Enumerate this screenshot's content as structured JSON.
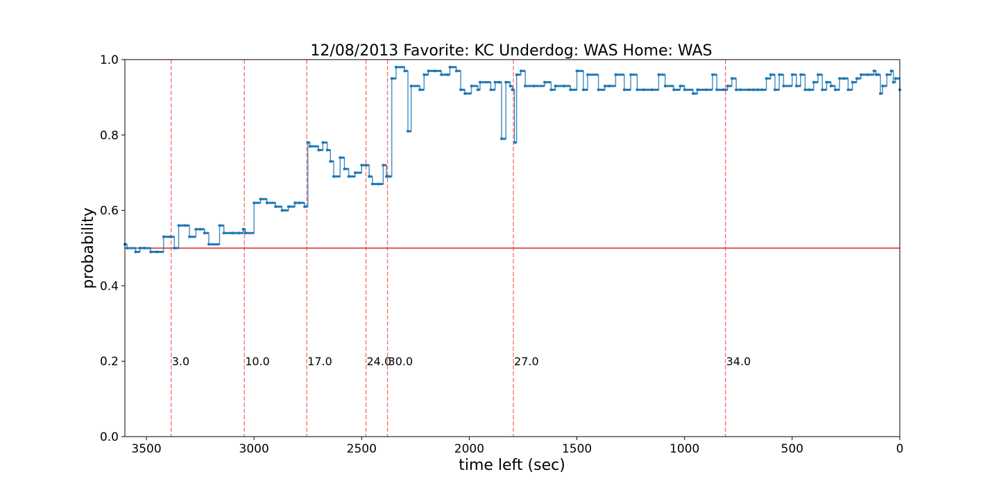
{
  "chart_data": {
    "type": "line",
    "title": "12/08/2013 Favorite: KC Underdog: WAS Home: WAS",
    "xlabel": "time left (sec)",
    "ylabel": "probability",
    "xlim": [
      3600,
      0
    ],
    "ylim": [
      0.0,
      1.0
    ],
    "x_inverted": true,
    "grid": false,
    "legend": "none",
    "xticks": [
      3500,
      3000,
      2500,
      2000,
      1500,
      1000,
      500,
      0
    ],
    "yticks": [
      0.0,
      0.2,
      0.4,
      0.6,
      0.8,
      1.0
    ],
    "ytick_labels": [
      "0.0",
      "0.2",
      "0.4",
      "0.6",
      "0.8",
      "1.0"
    ],
    "reference_line": {
      "y": 0.5,
      "color": "#d62728"
    },
    "score_markers": [
      {
        "x": 3385,
        "label": "3.0"
      },
      {
        "x": 3045,
        "label": "10.0"
      },
      {
        "x": 2755,
        "label": "17.0"
      },
      {
        "x": 2480,
        "label": "24.0"
      },
      {
        "x": 2380,
        "label": "30.0"
      },
      {
        "x": 1795,
        "label": "27.0"
      },
      {
        "x": 810,
        "label": "34.0"
      }
    ],
    "marker_color": "#ff6666",
    "series": [
      {
        "color": "#1f77b4",
        "x": [
          3600,
          3590,
          3550,
          3530,
          3510,
          3480,
          3450,
          3420,
          3390,
          3370,
          3350,
          3320,
          3300,
          3270,
          3250,
          3230,
          3210,
          3160,
          3140,
          3100,
          3070,
          3050,
          3040,
          3000,
          2970,
          2940,
          2900,
          2870,
          2840,
          2810,
          2790,
          2765,
          2750,
          2740,
          2700,
          2680,
          2660,
          2645,
          2630,
          2600,
          2580,
          2560,
          2530,
          2500,
          2480,
          2465,
          2450,
          2420,
          2400,
          2385,
          2375,
          2360,
          2340,
          2300,
          2285,
          2270,
          2230,
          2210,
          2190,
          2160,
          2130,
          2100,
          2090,
          2060,
          2040,
          2020,
          1990,
          1960,
          1950,
          1900,
          1880,
          1860,
          1850,
          1830,
          1810,
          1800,
          1790,
          1780,
          1760,
          1740,
          1700,
          1650,
          1620,
          1600,
          1560,
          1530,
          1500,
          1470,
          1450,
          1400,
          1370,
          1350,
          1320,
          1280,
          1250,
          1220,
          1190,
          1150,
          1120,
          1090,
          1050,
          1020,
          1000,
          960,
          940,
          900,
          870,
          850,
          820,
          800,
          780,
          760,
          740,
          700,
          680,
          660,
          640,
          620,
          600,
          580,
          560,
          540,
          500,
          480,
          460,
          440,
          420,
          400,
          380,
          360,
          340,
          320,
          300,
          280,
          260,
          240,
          220,
          200,
          180,
          150,
          120,
          110,
          100,
          90,
          80,
          60,
          40,
          30,
          20,
          0
        ],
        "y": [
          0.51,
          0.5,
          0.49,
          0.5,
          0.5,
          0.49,
          0.49,
          0.53,
          0.53,
          0.5,
          0.56,
          0.56,
          0.53,
          0.55,
          0.55,
          0.54,
          0.51,
          0.56,
          0.54,
          0.54,
          0.54,
          0.55,
          0.54,
          0.62,
          0.63,
          0.62,
          0.61,
          0.6,
          0.61,
          0.62,
          0.62,
          0.61,
          0.78,
          0.77,
          0.76,
          0.78,
          0.76,
          0.73,
          0.69,
          0.74,
          0.71,
          0.69,
          0.7,
          0.72,
          0.72,
          0.69,
          0.67,
          0.67,
          0.72,
          0.69,
          0.69,
          0.95,
          0.98,
          0.97,
          0.81,
          0.93,
          0.92,
          0.96,
          0.97,
          0.97,
          0.96,
          0.96,
          0.98,
          0.97,
          0.92,
          0.91,
          0.93,
          0.92,
          0.94,
          0.92,
          0.94,
          0.94,
          0.79,
          0.94,
          0.93,
          0.92,
          0.78,
          0.96,
          0.97,
          0.93,
          0.93,
          0.94,
          0.92,
          0.93,
          0.93,
          0.92,
          0.97,
          0.92,
          0.96,
          0.92,
          0.93,
          0.93,
          0.96,
          0.92,
          0.96,
          0.92,
          0.92,
          0.92,
          0.96,
          0.93,
          0.92,
          0.93,
          0.92,
          0.91,
          0.92,
          0.92,
          0.96,
          0.92,
          0.92,
          0.93,
          0.95,
          0.92,
          0.92,
          0.92,
          0.92,
          0.92,
          0.92,
          0.95,
          0.96,
          0.92,
          0.96,
          0.93,
          0.96,
          0.93,
          0.96,
          0.92,
          0.92,
          0.94,
          0.96,
          0.92,
          0.94,
          0.93,
          0.92,
          0.95,
          0.95,
          0.92,
          0.94,
          0.95,
          0.96,
          0.96,
          0.97,
          0.96,
          0.96,
          0.91,
          0.93,
          0.96,
          0.97,
          0.94,
          0.95,
          0.92
        ]
      }
    ]
  }
}
